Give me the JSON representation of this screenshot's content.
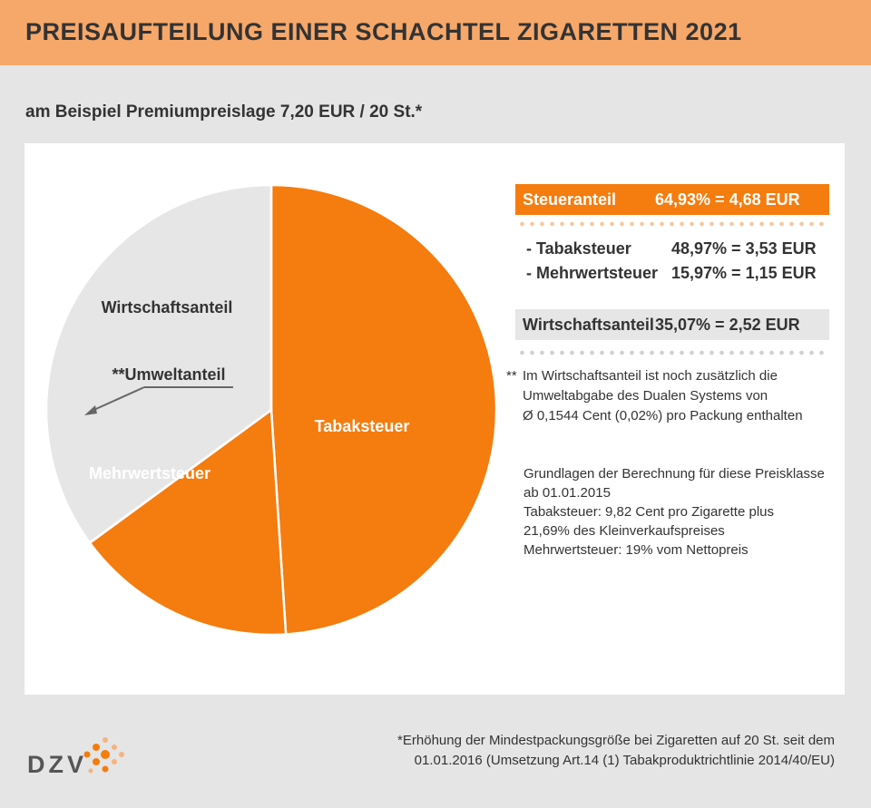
{
  "header": {
    "title": "PREISAUFTEILUNG EINER SCHACHTEL ZIGARETTEN 2021"
  },
  "subtitle": "am Beispiel Premiumpreislage 7,20 EUR / 20 St.*",
  "chart_data": {
    "type": "pie",
    "title": "PREISAUFTEILUNG EINER SCHACHTEL ZIGARETTEN 2021",
    "slices": [
      {
        "label": "Tabaksteuer",
        "value": 48.97,
        "color": "#f57c0e"
      },
      {
        "label": "Mehrwertsteuer",
        "value": 15.97,
        "color": "#f57c0e"
      },
      {
        "label": "**Umweltanteil",
        "value": 0.02,
        "color": "#e6e6e6"
      },
      {
        "label": "Wirtschaftsanteil",
        "value": 35.05,
        "color": "#e6e6e6"
      }
    ]
  },
  "summary": {
    "tax": {
      "label": "Steueranteil",
      "value": "64,93% = 4,68 EUR"
    },
    "tobacco": {
      "label": "- Tabaksteuer",
      "value": "48,97% = 3,53 EUR"
    },
    "vat": {
      "label": "- Mehrwertsteuer",
      "value": "15,97% = 1,15 EUR"
    },
    "economic": {
      "label": "Wirtschaftsanteil",
      "value": "35,07% = 2,52 EUR"
    }
  },
  "note": {
    "star": "**",
    "lines": [
      "Im Wirtschaftsanteil ist noch zusätzlich die",
      "Umweltabgabe des Dualen Systems von",
      "Ø 0,1544 Cent (0,02%) pro Packung enthalten"
    ]
  },
  "basis": [
    "Grundlagen der Berechnung für diese Preisklasse",
    "ab 01.01.2015",
    "Tabaksteuer: 9,82 Cent pro Zigarette plus",
    "21,69% des Kleinverkaufspreises",
    "Mehrwertsteuer: 19% vom Nettopreis"
  ],
  "footnote": [
    "*Erhöhung der Mindestpackungsgröße bei Zigaretten auf 20 St. seit dem",
    "01.01.2016 (Umsetzung Art.14 (1) Tabakproduktrichtlinie 2014/40/EU)"
  ],
  "logo": {
    "text": "DZV",
    "colors": {
      "orange": "#f57c0e",
      "light": "#f8b27a"
    }
  }
}
